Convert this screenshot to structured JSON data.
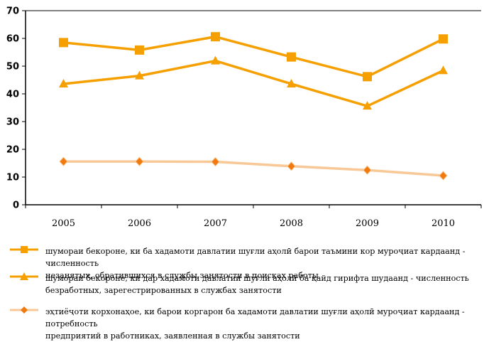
{
  "chart_data": {
    "type": "line",
    "categories": [
      "2005",
      "2006",
      "2007",
      "2008",
      "2009",
      "2010"
    ],
    "ylim": [
      0,
      70
    ],
    "yticks": [
      0,
      10,
      20,
      30,
      40,
      50,
      60,
      70
    ],
    "grid": "top border line only",
    "legend_placement": "bottom",
    "series": [
      {
        "name": "шумораи бекороне, ки ба хадамоти давлатии шуғли аҳолӣ барои таъмини кор муроҷиат кардаанд - численность незанятых, обратившихся в службы занятости в поисках работы",
        "values": [
          58.5,
          55.8,
          60.6,
          53.3,
          46.2,
          59.8
        ],
        "color": "#F5A000",
        "marker": "square"
      },
      {
        "name": "шумораи бекороне, ки дар хадамоти давлатии шуғли аҳолӣ ба қайд гирифта шудаанд - численность безработных, зарегестрированных в службах занятости",
        "values": [
          43.6,
          46.5,
          51.9,
          43.6,
          35.6,
          48.4
        ],
        "color": "#F5A000",
        "marker": "triangle"
      },
      {
        "name": "эҳтиёҷоти корхонаҳое, ки барои коргарон ба хадамоти давлатии шуғли аҳолӣ муроҷиат кардаанд - потребность предприятий в работниках, заявленная в службы занятости",
        "values": [
          15.6,
          15.6,
          15.5,
          13.9,
          12.5,
          10.5
        ],
        "color": "#F8C896",
        "marker": "diamond",
        "marker_color": "#F07A10"
      }
    ]
  },
  "legend": {
    "items": [
      {
        "line1": "шумораи бекороне, ки ба хадамоти давлатии шуғли аҳолӣ барои таъмини кор муроҷиат кардаанд  - численность",
        "line2": "незанятых, обратившихся в службы занятости в поисках работы"
      },
      {
        "line1": "шумораи бекороне, ки дар хадамоти давлатии шуғли аҳолӣ ба қайд гирифта шудаанд  - численность",
        "line2": "безработных, зарегестрированных в службах занятости"
      },
      {
        "line1": "эҳтиёҷоти корхонаҳое, ки барои коргарон ба хадамоти давлатии шуғли аҳолӣ муроҷиат кардаанд  - потребность",
        "line2": "предприятий в работниках, заявленная в службы занятости"
      }
    ]
  }
}
